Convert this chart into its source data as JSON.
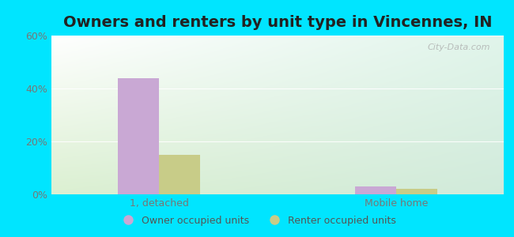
{
  "title": "Owners and renters by unit type in Vincennes, IN",
  "categories": [
    "1, detached",
    "Mobile home"
  ],
  "owner_values": [
    44,
    3
  ],
  "renter_values": [
    15,
    2
  ],
  "owner_color": "#c9a8d4",
  "renter_color": "#c8cc88",
  "ylim": [
    0,
    60
  ],
  "yticks": [
    0,
    20,
    40,
    60
  ],
  "ytick_labels": [
    "0%",
    "20%",
    "40%",
    "60%"
  ],
  "background_outer": "#00e5ff",
  "plot_bg_topleft": "#e8f5e0",
  "plot_bg_topright": "#d8ede8",
  "plot_bg_bottomleft": "#d0eac8",
  "plot_bg_bottomright": "#c8e8d8",
  "bar_width": 0.38,
  "group_centers": [
    1.0,
    3.2
  ],
  "legend_owner": "Owner occupied units",
  "legend_renter": "Renter occupied units",
  "watermark": "City-Data.com",
  "title_fontsize": 14,
  "axis_fontsize": 9,
  "legend_fontsize": 9,
  "xlim": [
    0.0,
    4.2
  ]
}
